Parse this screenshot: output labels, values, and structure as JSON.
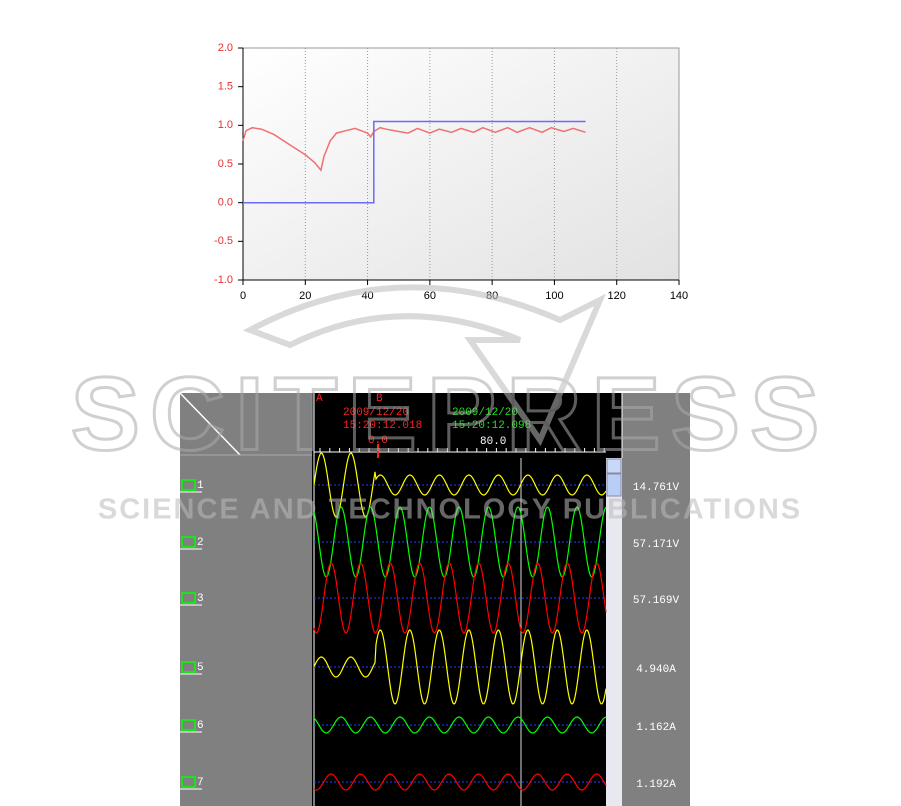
{
  "chart_data": [
    {
      "type": "line",
      "xlim": [
        0,
        140
      ],
      "xticks": [
        0,
        20,
        40,
        60,
        80,
        100,
        120,
        140
      ],
      "ylim": [
        -1,
        2
      ],
      "yticks": [
        {
          "value": -1,
          "label": "-1.0"
        },
        -0.5,
        {
          "value": 0,
          "label": "0.0"
        },
        0.5,
        {
          "value": 1,
          "label": "1.0"
        },
        1.5,
        {
          "value": 2,
          "label": "2.0"
        }
      ],
      "ytick_color": "#e83030",
      "grid": "x",
      "series": [
        {
          "color": "#f07070",
          "x": [
            0,
            1,
            3,
            6,
            10,
            15,
            20,
            23,
            25,
            26,
            28,
            30,
            33,
            36,
            40,
            41,
            42,
            44,
            46,
            50,
            53,
            56,
            60,
            63,
            67,
            70,
            74,
            77,
            81,
            85,
            88,
            92,
            96,
            99,
            103,
            106,
            110
          ],
          "values": [
            0.8,
            0.93,
            0.97,
            0.95,
            0.88,
            0.75,
            0.62,
            0.52,
            0.42,
            0.6,
            0.8,
            0.9,
            0.93,
            0.96,
            0.9,
            0.85,
            0.92,
            0.97,
            0.95,
            0.92,
            0.9,
            0.96,
            0.9,
            0.95,
            0.91,
            0.96,
            0.91,
            0.97,
            0.91,
            0.97,
            0.91,
            0.97,
            0.91,
            0.97,
            0.92,
            0.96,
            0.91
          ]
        },
        {
          "color": "#6a6aff",
          "x": [
            0,
            42,
            42,
            110
          ],
          "values": [
            0,
            0,
            1.05,
            1.05
          ]
        }
      ]
    },
    {
      "type": "waveform_display",
      "cursor_a": {
        "name": "A",
        "color": "#ff2020"
      },
      "cursor_b": {
        "name": "B",
        "date": "2009/12/20",
        "time": "15:20:12.018",
        "offset": "0.0",
        "color": "#ff2020"
      },
      "cursor_c": {
        "date": "2009/12/20",
        "time": "15:20:12.098",
        "offset": "80.0",
        "color": "#20e020"
      },
      "channels": [
        {
          "name": "1",
          "reading": "14.761V",
          "color": "#ffff00"
        },
        {
          "name": "2",
          "reading": "57.171V",
          "color": "#00ff00"
        },
        {
          "name": "3",
          "reading": "57.169V",
          "color": "#ff0000"
        },
        {
          "name": "5",
          "reading": "4.940A",
          "color": "#ffff00"
        },
        {
          "name": "6",
          "reading": "1.162A",
          "color": "#00ff00"
        },
        {
          "name": "7",
          "reading": "1.192A",
          "color": "#ff0000"
        }
      ]
    }
  ],
  "watermark": {
    "title": "SCITEPRESS",
    "subtitle": "SCIENCE AND TECHNOLOGY PUBLICATIONS"
  }
}
